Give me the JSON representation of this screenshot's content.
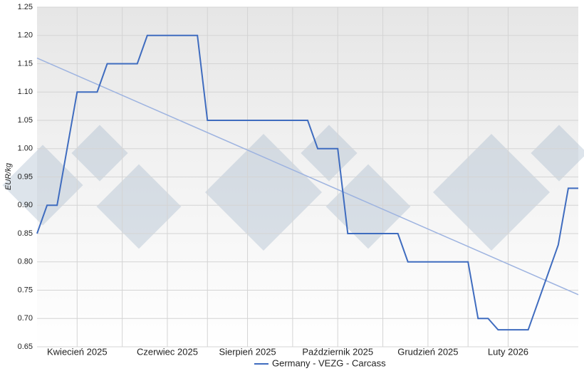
{
  "chart_data": {
    "type": "line",
    "y_label": "EUR/kg",
    "categories": [
      null,
      null,
      null,
      null,
      "Kwiecień 2025",
      null,
      null,
      null,
      null,
      null,
      null,
      null,
      null,
      "Czerwiec 2025",
      null,
      null,
      null,
      null,
      null,
      null,
      null,
      "Sierpień 2025",
      null,
      null,
      null,
      null,
      null,
      null,
      null,
      null,
      "Październik 2025",
      null,
      null,
      null,
      null,
      null,
      null,
      null,
      null,
      "Grudzień 2025",
      null,
      null,
      null,
      null,
      null,
      null,
      null,
      "Luty 2026",
      null,
      null,
      null,
      null,
      null,
      null,
      null
    ],
    "series": [
      {
        "name": "Germany - VEZG - Carcass",
        "color": "#3f6cbf",
        "values": [
          0.85,
          0.9,
          0.9,
          1.0,
          1.1,
          1.1,
          1.1,
          1.15,
          1.15,
          1.15,
          1.15,
          1.2,
          1.2,
          1.2,
          1.2,
          1.2,
          1.2,
          1.05,
          1.05,
          1.05,
          1.05,
          1.05,
          1.05,
          1.05,
          1.05,
          1.05,
          1.05,
          1.05,
          1.0,
          1.0,
          1.0,
          0.85,
          0.85,
          0.85,
          0.85,
          0.85,
          0.85,
          0.8,
          0.8,
          0.8,
          0.8,
          0.8,
          0.8,
          0.8,
          0.7,
          0.7,
          0.68,
          0.68,
          0.68,
          0.68,
          0.73,
          0.78,
          0.83,
          0.93,
          0.93
        ]
      }
    ],
    "trend": {
      "start": 1.16,
      "end": 0.742,
      "color": "#9db3e0"
    },
    "ylim": [
      0.65,
      1.25
    ],
    "yticks": [
      {
        "value": 0.65,
        "label": "0.65"
      },
      {
        "value": 0.7,
        "label": "0.70"
      },
      {
        "value": 0.75,
        "label": "0.75"
      },
      {
        "value": 0.8,
        "label": "0.80"
      },
      {
        "value": 0.85,
        "label": "0.85"
      },
      {
        "value": 0.9,
        "label": "0.90"
      },
      {
        "value": 0.95,
        "label": "0.95"
      },
      {
        "value": 1,
        "label": "1.00"
      },
      {
        "value": 1.05,
        "label": "1.05"
      },
      {
        "value": 1.1,
        "label": "1.10"
      },
      {
        "value": 1.15,
        "label": "1.15"
      },
      {
        "value": 1.2,
        "label": "1.20"
      },
      {
        "value": 1.25,
        "label": "1.25"
      }
    ],
    "grid": true,
    "legend": "bottom"
  }
}
